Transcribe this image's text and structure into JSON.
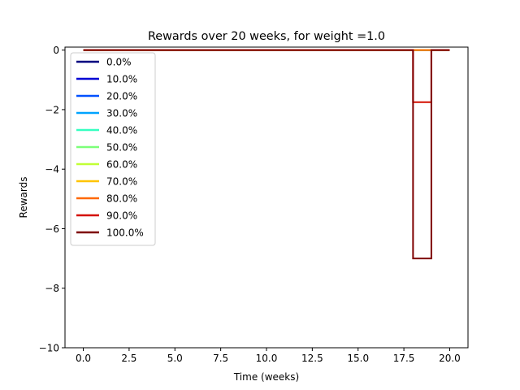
{
  "chart_data": {
    "type": "line",
    "title": "Rewards over 20 weeks, for weight =1.0",
    "xlabel": "Time (weeks)",
    "ylabel": "Rewards",
    "xlim": [
      -1,
      21
    ],
    "ylim": [
      -10,
      0.1
    ],
    "xticks": [
      0,
      2.5,
      5,
      7.5,
      10,
      12.5,
      15,
      17.5,
      20
    ],
    "xtick_labels": [
      "0.0",
      "2.5",
      "5.0",
      "7.5",
      "10.0",
      "12.5",
      "15.0",
      "17.5",
      "20.0"
    ],
    "yticks": [
      0,
      -2,
      -4,
      -6,
      -8,
      -10
    ],
    "ytick_labels": [
      "0",
      "−2",
      "−4",
      "−6",
      "−8",
      "−10"
    ],
    "step": "post",
    "grid": false,
    "legend_position": "upper-left",
    "series": [
      {
        "name": "0.0%",
        "color": "#00007f",
        "x": [
          0,
          18,
          19,
          20
        ],
        "y": [
          0,
          0,
          0,
          0
        ]
      },
      {
        "name": "10.0%",
        "color": "#0000d4",
        "x": [
          0,
          18,
          19,
          20
        ],
        "y": [
          0,
          0,
          0,
          0
        ]
      },
      {
        "name": "20.0%",
        "color": "#0050ff",
        "x": [
          0,
          18,
          19,
          20
        ],
        "y": [
          0,
          0,
          0,
          0
        ]
      },
      {
        "name": "30.0%",
        "color": "#00a4ff",
        "x": [
          0,
          18,
          19,
          20
        ],
        "y": [
          0,
          0,
          0,
          0
        ]
      },
      {
        "name": "40.0%",
        "color": "#36ffc1",
        "x": [
          0,
          18,
          19,
          20
        ],
        "y": [
          0,
          0,
          0,
          0
        ]
      },
      {
        "name": "50.0%",
        "color": "#7cff79",
        "x": [
          0,
          18,
          19,
          20
        ],
        "y": [
          0,
          0,
          0,
          0
        ]
      },
      {
        "name": "60.0%",
        "color": "#c1ff36",
        "x": [
          0,
          18,
          19,
          20
        ],
        "y": [
          0,
          0,
          0,
          0
        ]
      },
      {
        "name": "70.0%",
        "color": "#ffc400",
        "x": [
          0,
          18,
          19,
          20
        ],
        "y": [
          0,
          0,
          0,
          0
        ]
      },
      {
        "name": "80.0%",
        "color": "#ff6800",
        "x": [
          0,
          18,
          19,
          20
        ],
        "y": [
          0,
          0,
          0,
          0
        ]
      },
      {
        "name": "90.0%",
        "color": "#d40f00",
        "x": [
          0,
          18,
          19,
          20
        ],
        "y": [
          0,
          -1.75,
          0,
          0
        ]
      },
      {
        "name": "100.0%",
        "color": "#7f0000",
        "x": [
          0,
          18,
          19,
          20
        ],
        "y": [
          0,
          -7,
          0,
          0
        ]
      }
    ]
  }
}
